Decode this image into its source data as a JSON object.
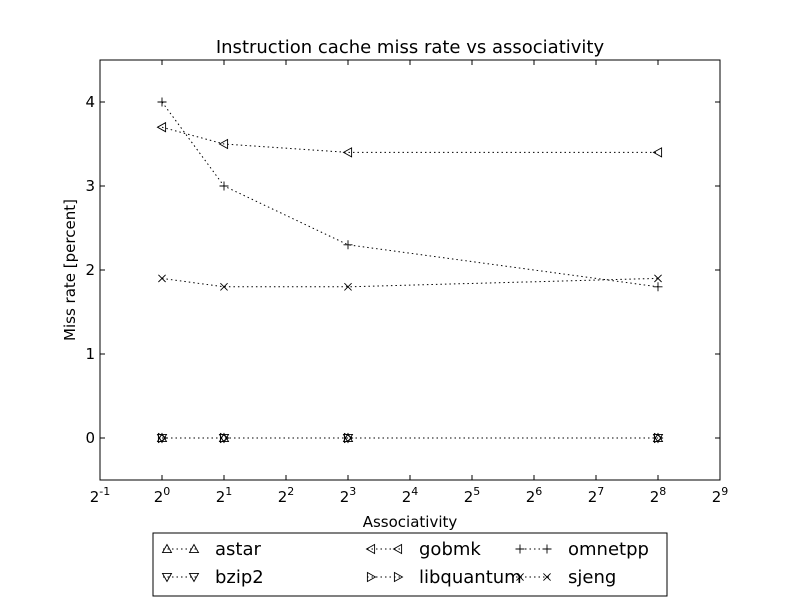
{
  "chart_data": {
    "type": "line",
    "title": "Instruction cache miss rate vs associativity",
    "xlabel": "Associativity",
    "ylabel": "Miss rate [percent]",
    "xscale": "log2",
    "xlim_exponent": [
      -1,
      9
    ],
    "ylim": [
      -0.5,
      4.5
    ],
    "x_tick_base": "2",
    "x_tick_exponents": [
      "-1",
      "0",
      "1",
      "2",
      "3",
      "4",
      "5",
      "6",
      "7",
      "8",
      "9"
    ],
    "y_ticks": [
      "0",
      "1",
      "2",
      "3",
      "4"
    ],
    "grid": false,
    "legend_position": "bottom-center",
    "x": [
      1,
      2,
      8,
      256
    ],
    "series": [
      {
        "name": "astar",
        "marker": "triangle-up",
        "values": [
          0.0,
          0.0,
          0.0,
          0.0
        ]
      },
      {
        "name": "bzip2",
        "marker": "triangle-down",
        "values": [
          0.0,
          0.0,
          0.0,
          0.0
        ]
      },
      {
        "name": "gobmk",
        "marker": "triangle-left",
        "values": [
          3.7,
          3.5,
          3.4,
          3.4
        ]
      },
      {
        "name": "libquantum",
        "marker": "triangle-right",
        "values": [
          0.0,
          0.0,
          0.0,
          0.0
        ]
      },
      {
        "name": "omnetpp",
        "marker": "plus",
        "values": [
          4.0,
          3.0,
          2.3,
          1.8
        ]
      },
      {
        "name": "sjeng",
        "marker": "x",
        "values": [
          1.9,
          1.8,
          1.8,
          1.9
        ]
      }
    ],
    "line_color": "#000000",
    "line_style": "dotted"
  }
}
